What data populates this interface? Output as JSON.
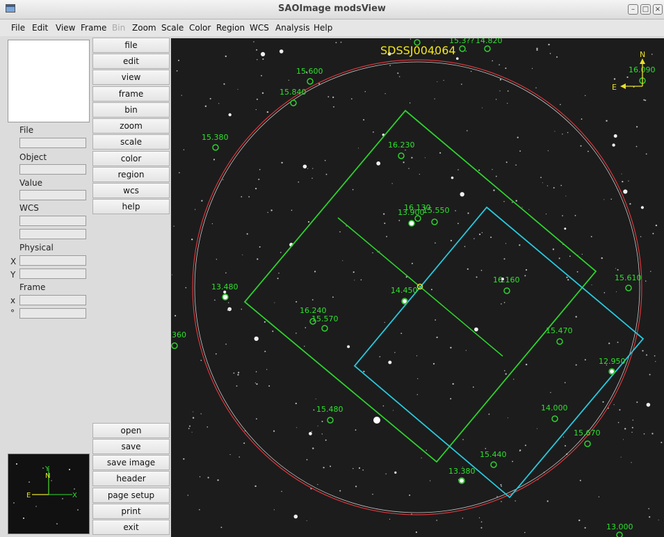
{
  "window": {
    "title": "SAOImage modsView"
  },
  "menu": [
    "File",
    "Edit",
    "View",
    "Frame",
    "Bin",
    "Zoom",
    "Scale",
    "Color",
    "Region",
    "WCS",
    "Analysis",
    "Help"
  ],
  "menu_disabled": [
    "Bin"
  ],
  "panel": {
    "file_label": "File",
    "object_label": "Object",
    "value_label": "Value",
    "wcs_label": "WCS",
    "physical_label": "Physical",
    "physical_x": "X",
    "physical_y": "Y",
    "frame_label": "Frame",
    "frame_x": "x",
    "frame_deg": "°"
  },
  "buttons_top": [
    "file",
    "edit",
    "view",
    "frame",
    "bin",
    "zoom",
    "scale",
    "color",
    "region",
    "wcs",
    "help"
  ],
  "buttons_bottom": [
    "open",
    "save",
    "save image",
    "header",
    "page setup",
    "print",
    "exit"
  ],
  "image": {
    "target_label": "SDSSJ004064",
    "compass": {
      "north": "N",
      "east": "E"
    },
    "magnifier": {
      "north": "N",
      "east": "E",
      "y_axis": "Y",
      "x_axis": "X"
    },
    "star_labels": [
      "15.600",
      "15.840",
      "15.380",
      "16.230",
      "16.130",
      "13.900",
      "15.550",
      "13.480",
      "14.450",
      "16.160",
      "15.610",
      "16.240",
      "15.570",
      "15.470",
      "12.950",
      "360",
      "15.480",
      "14.000",
      "15.670",
      "15.440",
      "13.380",
      "13.000",
      "16.090",
      "15.3??",
      "14.820"
    ],
    "colors": {
      "primary_region": "#2ed12e",
      "secondary_region": "#27c9dd",
      "circle": "#d9363b",
      "text": "#2fe02f",
      "target": "#f2e61c"
    }
  }
}
